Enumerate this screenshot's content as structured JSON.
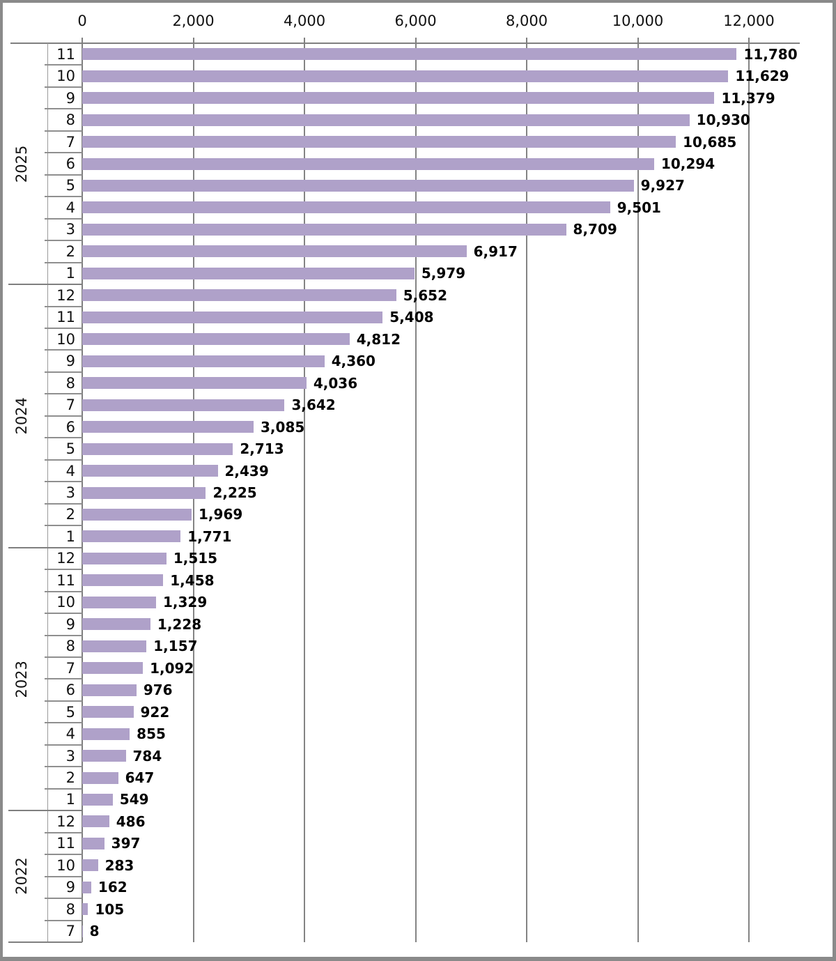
{
  "chart_data": {
    "type": "bar",
    "orientation": "horizontal",
    "title": "",
    "xlabel": "",
    "ylabel": "",
    "legend_position": "none",
    "grid": "vertical-major",
    "x_axis": {
      "position": "top",
      "min": 0,
      "max": 13000,
      "ticks": [
        {
          "value": 0,
          "label": "0"
        },
        {
          "value": 2000,
          "label": "2,000"
        },
        {
          "value": 4000,
          "label": "4,000"
        },
        {
          "value": 6000,
          "label": "6,000"
        },
        {
          "value": 8000,
          "label": "8,000"
        },
        {
          "value": 10000,
          "label": "10,000"
        },
        {
          "value": 12000,
          "label": "12,000"
        }
      ]
    },
    "y_axis": {
      "level1_name": "year",
      "level2_name": "month",
      "direction": "top-to-bottom"
    },
    "groups": [
      {
        "year": "2025",
        "rows": [
          {
            "month": "11",
            "value": 11780,
            "label": "11,780"
          },
          {
            "month": "10",
            "value": 11629,
            "label": "11,629"
          },
          {
            "month": "9",
            "value": 11379,
            "label": "11,379"
          },
          {
            "month": "8",
            "value": 10930,
            "label": "10,930"
          },
          {
            "month": "7",
            "value": 10685,
            "label": "10,685"
          },
          {
            "month": "6",
            "value": 10294,
            "label": "10,294"
          },
          {
            "month": "5",
            "value": 9927,
            "label": "9,927"
          },
          {
            "month": "4",
            "value": 9501,
            "label": "9,501"
          },
          {
            "month": "3",
            "value": 8709,
            "label": "8,709"
          },
          {
            "month": "2",
            "value": 6917,
            "label": "6,917"
          },
          {
            "month": "1",
            "value": 5979,
            "label": "5,979"
          }
        ]
      },
      {
        "year": "2024",
        "rows": [
          {
            "month": "12",
            "value": 5652,
            "label": "5,652"
          },
          {
            "month": "11",
            "value": 5408,
            "label": "5,408"
          },
          {
            "month": "10",
            "value": 4812,
            "label": "4,812"
          },
          {
            "month": "9",
            "value": 4360,
            "label": "4,360"
          },
          {
            "month": "8",
            "value": 4036,
            "label": "4,036"
          },
          {
            "month": "7",
            "value": 3642,
            "label": "3,642"
          },
          {
            "month": "6",
            "value": 3085,
            "label": "3,085"
          },
          {
            "month": "5",
            "value": 2713,
            "label": "2,713"
          },
          {
            "month": "4",
            "value": 2439,
            "label": "2,439"
          },
          {
            "month": "3",
            "value": 2225,
            "label": "2,225"
          },
          {
            "month": "2",
            "value": 1969,
            "label": "1,969"
          },
          {
            "month": "1",
            "value": 1771,
            "label": "1,771"
          }
        ]
      },
      {
        "year": "2023",
        "rows": [
          {
            "month": "12",
            "value": 1515,
            "label": "1,515"
          },
          {
            "month": "11",
            "value": 1458,
            "label": "1,458"
          },
          {
            "month": "10",
            "value": 1329,
            "label": "1,329"
          },
          {
            "month": "9",
            "value": 1228,
            "label": "1,228"
          },
          {
            "month": "8",
            "value": 1157,
            "label": "1,157"
          },
          {
            "month": "7",
            "value": 1092,
            "label": "1,092"
          },
          {
            "month": "6",
            "value": 976,
            "label": "976"
          },
          {
            "month": "5",
            "value": 922,
            "label": "922"
          },
          {
            "month": "4",
            "value": 855,
            "label": "855"
          },
          {
            "month": "3",
            "value": 784,
            "label": "784"
          },
          {
            "month": "2",
            "value": 647,
            "label": "647"
          },
          {
            "month": "1",
            "value": 549,
            "label": "549"
          }
        ]
      },
      {
        "year": "2022",
        "rows": [
          {
            "month": "12",
            "value": 486,
            "label": "486"
          },
          {
            "month": "11",
            "value": 397,
            "label": "397"
          },
          {
            "month": "10",
            "value": 283,
            "label": "283"
          },
          {
            "month": "9",
            "value": 162,
            "label": "162"
          },
          {
            "month": "8",
            "value": 105,
            "label": "105"
          },
          {
            "month": "7",
            "value": 8,
            "label": "8"
          }
        ]
      }
    ],
    "colors": {
      "bar": "#afa1c9",
      "gridline": "#848484",
      "axis_line": "#7f7f7f",
      "month_separator": "#8f8f8f",
      "month_column_line": "#9a9a9a",
      "text": "#111111",
      "value_label_text": "#000000",
      "frame_border": "#8a8a8a",
      "background": "#ffffff"
    }
  }
}
